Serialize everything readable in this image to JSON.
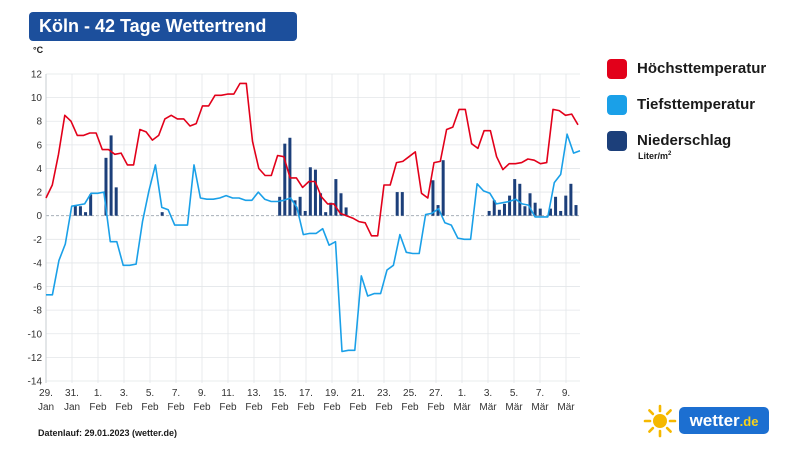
{
  "title": "Köln - 42 Tage Wettertrend",
  "footer": "Datenlauf: 29.01.2023 (wetter.de)",
  "logo": {
    "name": "wetter",
    "tld": ".de"
  },
  "colors": {
    "title_bg": "#1c4f9c",
    "high": "#e2001a",
    "low": "#1aa0e8",
    "precip": "#1c3f7a"
  },
  "legend": {
    "items": [
      {
        "label": "Höchsttemperatur",
        "color": "#e2001a"
      },
      {
        "label": "Tiefsttemperatur",
        "color": "#1aa0e8"
      },
      {
        "label": "Niederschlag",
        "color": "#1c3f7a"
      }
    ],
    "precip_unit": "Liter/m",
    "precip_unit_sup": "2"
  },
  "chart_data": {
    "type": "line",
    "ylabel": "°C",
    "ylim": [
      -14,
      12
    ],
    "yticks": [
      12,
      10,
      8,
      6,
      4,
      2,
      0,
      -2,
      -4,
      -6,
      -8,
      -10,
      -12,
      -14
    ],
    "grid": true,
    "legend_position": "right",
    "xticks": [
      [
        "29.",
        "Jan"
      ],
      [
        "31.",
        "Jan"
      ],
      [
        "1.",
        "Feb"
      ],
      [
        "3.",
        "Feb"
      ],
      [
        "5.",
        "Feb"
      ],
      [
        "7.",
        "Feb"
      ],
      [
        "9.",
        "Feb"
      ],
      [
        "11.",
        "Feb"
      ],
      [
        "13.",
        "Feb"
      ],
      [
        "15.",
        "Feb"
      ],
      [
        "17.",
        "Feb"
      ],
      [
        "19.",
        "Feb"
      ],
      [
        "21.",
        "Feb"
      ],
      [
        "23.",
        "Feb"
      ],
      [
        "25.",
        "Feb"
      ],
      [
        "27.",
        "Feb"
      ],
      [
        "1.",
        "Mär"
      ],
      [
        "3.",
        "Mär"
      ],
      [
        "5.",
        "Mär"
      ],
      [
        "7.",
        "Mär"
      ],
      [
        "9.",
        "Mär"
      ]
    ],
    "series": [
      {
        "name": "Höchsttemperatur",
        "values": [
          1.5,
          2.6,
          5.2,
          8.5,
          8.0,
          6.8,
          6.8,
          7.0,
          7.0,
          5.6,
          5.6,
          5.2,
          5.3,
          4.3,
          4.3,
          7.3,
          7.1,
          6.4,
          6.8,
          8.2,
          8.5,
          8.2,
          8.2,
          7.6,
          7.8,
          9.3,
          9.3,
          10.2,
          10.2,
          10.3,
          10.3,
          11.2,
          11.2,
          6.3,
          4.0,
          3.4,
          3.4,
          5.1,
          5.0,
          3.2,
          3.2,
          2.4,
          2.9,
          2.9,
          1.6,
          1.0,
          1.0,
          0.2,
          0.0,
          -0.2,
          -0.5,
          -0.6,
          -1.7,
          -1.7,
          2.6,
          2.6,
          4.5,
          4.6,
          5.0,
          5.4,
          1.9,
          1.5,
          4.5,
          4.6,
          7.3,
          7.5,
          9.0,
          9.0,
          6.1,
          5.7,
          7.2,
          7.2,
          5.0,
          3.9,
          4.4,
          4.4,
          4.5,
          4.8,
          4.7,
          4.4,
          4.5,
          9.0,
          8.9,
          8.5,
          8.6,
          7.7
        ]
      },
      {
        "name": "Tiefsttemperatur",
        "values": [
          -6.7,
          -6.7,
          -3.8,
          -2.4,
          0.8,
          0.9,
          1.0,
          1.9,
          1.9,
          2.0,
          -2.2,
          -2.2,
          -4.2,
          -4.2,
          -4.1,
          -0.5,
          2.1,
          4.3,
          0.7,
          0.5,
          -0.8,
          -0.8,
          -0.8,
          4.3,
          1.5,
          1.4,
          1.4,
          1.5,
          1.7,
          1.5,
          1.5,
          1.3,
          1.3,
          2.0,
          1.4,
          1.2,
          1.2,
          1.3,
          1.5,
          0.7,
          -1.6,
          -1.5,
          -1.5,
          -1.1,
          -2.5,
          -2.2,
          -11.5,
          -11.4,
          -11.4,
          -5.1,
          -6.8,
          -6.6,
          -6.6,
          -4.6,
          -4.2,
          -1.6,
          -3.1,
          -3.2,
          -3.2,
          0.1,
          0.2,
          0.6,
          -0.6,
          -0.8,
          -1.9,
          -2.0,
          -2.0,
          2.7,
          2.1,
          1.9,
          1.0,
          1.1,
          1.2,
          1.4,
          1.0,
          0.9,
          -0.1,
          -0.1,
          -0.1,
          2.8,
          3.5,
          6.9,
          5.3,
          5.5
        ]
      },
      {
        "name": "Niederschlag",
        "values": [
          0,
          0,
          0,
          0.9,
          0.8,
          0.3,
          1.8,
          0,
          0,
          4.9,
          6.8,
          2.4,
          0,
          0,
          0,
          0,
          0,
          0,
          0,
          0,
          0.3,
          0,
          0,
          0,
          0,
          0,
          0,
          0,
          0,
          0,
          0,
          0,
          0,
          0,
          0,
          0,
          0,
          0,
          0,
          0,
          0,
          0,
          0,
          1.6,
          6.1,
          6.6,
          1.3,
          1.6,
          0.4,
          4.1,
          3.9,
          1.9,
          0.3,
          1.1,
          3.1,
          1.9,
          0.7,
          0,
          0,
          0,
          0,
          0,
          0,
          0,
          0,
          0,
          2.0,
          2.0,
          0,
          0,
          0,
          0,
          0,
          3.0,
          0.9,
          4.7,
          0,
          0,
          0,
          0,
          0,
          0,
          0,
          0,
          0.4,
          1.3,
          0.5,
          1.0,
          1.7,
          3.1,
          2.7,
          0.8,
          1.9,
          1.1,
          0.6,
          0,
          0.6,
          1.6,
          0.4,
          1.7,
          2.7,
          0.9
        ]
      }
    ]
  }
}
